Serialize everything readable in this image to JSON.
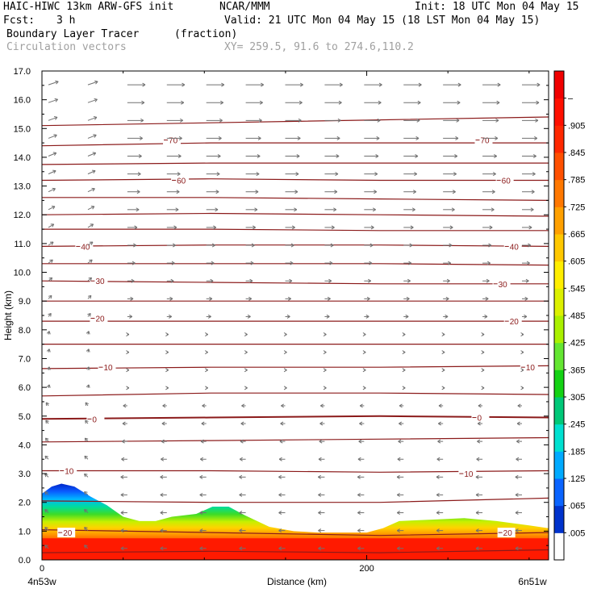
{
  "header": {
    "model": "HAIC-HIWC 13km ARW-GFS init",
    "org": "NCAR/MMM",
    "init": "Init: 18 UTC Mon 04 May 15",
    "fcst_label": "Fcst:",
    "fcst_value": "3 h",
    "valid": "Valid: 21 UTC Mon 04 May 15 (18 LST Mon 04 May 15)",
    "field": "Boundary Layer Tracer",
    "field_units": "(fraction)",
    "overlay": "Circulation vectors",
    "xy": "XY= 259.5, 91.6 to 274.6,110.2"
  },
  "colors": {
    "contour": "#8b1a1a",
    "vector": "#707070",
    "field_high": "#ff1a00",
    "field_low": "#0033cc"
  },
  "chart_data": {
    "type": "heatmap",
    "ylabel": "Height (km)",
    "xlabel": "Distance (km)",
    "x_left_label": "4n53w",
    "x_right_label": "6n51w",
    "xlim": [
      0,
      312
    ],
    "ylim": [
      0,
      17
    ],
    "x_ticks": [
      0,
      200
    ],
    "y_ticks": [
      "0.0",
      "1.0",
      "2.0",
      "3.0",
      "4.0",
      "5.0",
      "6.0",
      "7.0",
      "8.0",
      "9.0",
      "10.0",
      "11.0",
      "12.0",
      "13.0",
      "14.0",
      "15.0",
      "16.0",
      "17.0"
    ],
    "colorbar": {
      "labels": [
        ".005",
        ".065",
        ".125",
        ".185",
        ".245",
        ".305",
        ".365",
        ".425",
        ".485",
        ".545",
        ".605",
        ".665",
        ".725",
        ".785",
        ".845",
        ".905",
        "–"
      ],
      "colors": [
        "#ffffff",
        "#0033cc",
        "#0a64ff",
        "#00aaff",
        "#00e0d0",
        "#00c878",
        "#14d214",
        "#64e632",
        "#aaf000",
        "#dcf000",
        "#ffee00",
        "#ffc800",
        "#ffa000",
        "#ff7800",
        "#ff5000",
        "#ff2800",
        "#ff1000",
        "#f00000"
      ]
    },
    "contour_labels": [
      {
        "text": "70",
        "x": 80,
        "y": 14.6
      },
      {
        "text": "70",
        "x": 272,
        "y": 14.6
      },
      {
        "text": "60",
        "x": 85,
        "y": 13.2
      },
      {
        "text": "60",
        "x": 285,
        "y": 13.2
      },
      {
        "text": "40",
        "x": 26,
        "y": 10.9
      },
      {
        "text": "40",
        "x": 290,
        "y": 10.9
      },
      {
        "text": "30",
        "x": 35,
        "y": 9.7
      },
      {
        "text": "30",
        "x": 283,
        "y": 9.6
      },
      {
        "text": "20",
        "x": 35,
        "y": 8.4
      },
      {
        "text": "20",
        "x": 290,
        "y": 8.3
      },
      {
        "text": "10",
        "x": 40,
        "y": 6.7
      },
      {
        "text": "10",
        "x": 300,
        "y": 6.7
      },
      {
        "text": "0",
        "x": 33,
        "y": 4.9
      },
      {
        "text": "0",
        "x": 270,
        "y": 4.95
      },
      {
        "text": "10",
        "x": 16,
        "y": 3.1
      },
      {
        "text": "10",
        "x": 262,
        "y": 3.0
      },
      {
        "text": "20",
        "x": 15,
        "y": 0.95
      },
      {
        "text": "20",
        "x": 286,
        "y": 0.95
      }
    ],
    "contour_levels": [
      [
        15.1,
        15.2,
        15.3,
        15.4
      ],
      [
        14.4,
        14.5,
        14.5,
        14.5
      ],
      [
        13.75,
        13.8,
        13.8,
        13.8
      ],
      [
        13.2,
        13.25,
        13.2,
        13.2
      ],
      [
        12.6,
        12.6,
        12.55,
        12.5
      ],
      [
        12.0,
        12.05,
        12.0,
        11.95
      ],
      [
        11.5,
        11.5,
        11.45,
        11.45
      ],
      [
        10.9,
        10.95,
        10.95,
        10.9
      ],
      [
        10.3,
        10.3,
        10.3,
        10.25
      ],
      [
        9.7,
        9.65,
        9.6,
        9.6
      ],
      [
        9.0,
        9.0,
        9.0,
        9.0
      ],
      [
        8.3,
        8.3,
        8.3,
        8.3
      ],
      [
        7.5,
        7.5,
        7.5,
        7.5
      ],
      [
        6.65,
        6.7,
        6.7,
        6.75
      ],
      [
        5.7,
        5.8,
        5.8,
        5.75
      ],
      [
        4.9,
        4.95,
        5.0,
        4.95
      ],
      [
        4.1,
        4.15,
        4.2,
        4.25
      ],
      [
        3.1,
        3.1,
        3.05,
        3.1
      ],
      [
        2.05,
        2.0,
        2.0,
        2.15
      ],
      [
        1.05,
        0.95,
        0.85,
        0.95
      ],
      [
        0.25,
        0.3,
        0.25,
        0.35
      ]
    ],
    "boundary_layer_top": [
      [
        0,
        2.3
      ],
      [
        6,
        2.55
      ],
      [
        12,
        2.65
      ],
      [
        20,
        2.55
      ],
      [
        30,
        2.2
      ],
      [
        40,
        1.9
      ],
      [
        50,
        1.5
      ],
      [
        60,
        1.35
      ],
      [
        70,
        1.35
      ],
      [
        80,
        1.5
      ],
      [
        95,
        1.6
      ],
      [
        105,
        1.85
      ],
      [
        115,
        1.85
      ],
      [
        125,
        1.55
      ],
      [
        140,
        1.15
      ],
      [
        155,
        1.0
      ],
      [
        170,
        0.95
      ],
      [
        185,
        0.95
      ],
      [
        200,
        0.95
      ],
      [
        210,
        1.1
      ],
      [
        220,
        1.35
      ],
      [
        240,
        1.4
      ],
      [
        260,
        1.45
      ],
      [
        280,
        1.35
      ],
      [
        300,
        1.2
      ],
      [
        312,
        1.1
      ]
    ]
  }
}
